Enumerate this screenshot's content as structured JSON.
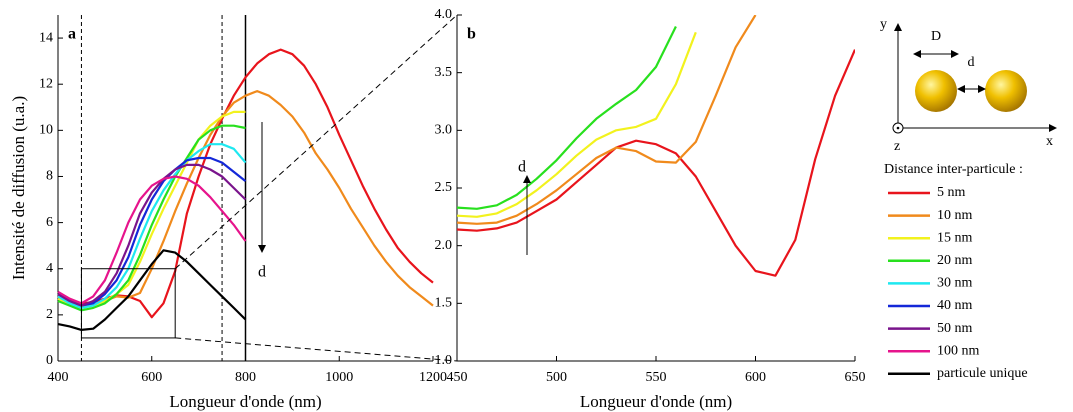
{
  "chart_data": [
    {
      "type": "line",
      "panel_label": "a",
      "ylabel": "Intensité de diffusion (u.a.)",
      "xlabel": "Longueur d'onde (nm)",
      "xlim": [
        400,
        1200
      ],
      "ylim": [
        0,
        15
      ],
      "xticks": [
        400,
        600,
        800,
        1000,
        1200
      ],
      "yticks": [
        0,
        2,
        4,
        6,
        8,
        10,
        12,
        14
      ],
      "dashed_vlines": [
        450,
        750
      ],
      "solid_vline": 800,
      "zoom_box": {
        "xlim": [
          450,
          650
        ],
        "ylim": [
          1,
          4
        ]
      },
      "annotation": "d",
      "legend_title": "Distance inter-particule :",
      "x": [
        400,
        425,
        450,
        475,
        500,
        525,
        550,
        575,
        600,
        625,
        650,
        675,
        700,
        725,
        750,
        775,
        800,
        825,
        850,
        875,
        900,
        925,
        950,
        975,
        1000,
        1025,
        1050,
        1075,
        1100,
        1125,
        1150,
        1175,
        1200
      ],
      "series": [
        {
          "name": "5 nm",
          "color": "#e8141c",
          "values": [
            2.8,
            2.6,
            2.5,
            2.55,
            2.7,
            2.85,
            2.8,
            2.6,
            1.9,
            2.5,
            3.9,
            6.4,
            8.0,
            9.4,
            10.5,
            11.5,
            12.3,
            12.9,
            13.3,
            13.5,
            13.3,
            12.8,
            12.0,
            11.0,
            9.8,
            8.7,
            7.6,
            6.6,
            5.7,
            4.9,
            4.3,
            3.8,
            3.4
          ]
        },
        {
          "name": "10 nm",
          "color": "#f08a1c",
          "values": [
            2.8,
            2.6,
            2.4,
            2.45,
            2.6,
            2.8,
            2.75,
            2.95,
            4.0,
            5.2,
            6.5,
            7.7,
            8.8,
            9.8,
            10.6,
            11.2,
            11.5,
            11.7,
            11.5,
            11.1,
            10.6,
            9.9,
            9.0,
            8.3,
            7.5,
            6.6,
            5.8,
            5.0,
            4.3,
            3.7,
            3.2,
            2.8,
            2.4
          ]
        },
        {
          "name": "15 nm",
          "color": "#f2f21e",
          "values": [
            2.7,
            2.5,
            2.3,
            2.4,
            2.6,
            2.9,
            3.3,
            4.3,
            5.5,
            6.6,
            7.6,
            8.6,
            9.6,
            10.2,
            10.6,
            10.8,
            10.8,
            null,
            null,
            null,
            null,
            null,
            null,
            null,
            null,
            null,
            null,
            null,
            null,
            null,
            null,
            null,
            null
          ]
        },
        {
          "name": "20 nm",
          "color": "#28e01e",
          "values": [
            2.6,
            2.4,
            2.2,
            2.3,
            2.5,
            2.9,
            3.5,
            4.6,
            5.9,
            7.0,
            8.0,
            8.8,
            9.6,
            10.0,
            10.2,
            10.2,
            10.1,
            null,
            null,
            null,
            null,
            null,
            null,
            null,
            null,
            null,
            null,
            null,
            null,
            null,
            null,
            null,
            null
          ]
        },
        {
          "name": "30 nm",
          "color": "#1ee8f0",
          "values": [
            2.8,
            2.5,
            2.3,
            2.4,
            2.7,
            3.2,
            4.0,
            5.3,
            6.5,
            7.4,
            8.1,
            8.7,
            9.1,
            9.4,
            9.4,
            9.2,
            8.6,
            null,
            null,
            null,
            null,
            null,
            null,
            null,
            null,
            null,
            null,
            null,
            null,
            null,
            null,
            null,
            null
          ]
        },
        {
          "name": "40 nm",
          "color": "#1428d8",
          "values": [
            2.9,
            2.6,
            2.4,
            2.5,
            2.9,
            3.5,
            4.5,
            5.9,
            7.0,
            7.8,
            8.3,
            8.7,
            8.8,
            8.8,
            8.6,
            8.2,
            7.8,
            null,
            null,
            null,
            null,
            null,
            null,
            null,
            null,
            null,
            null,
            null,
            null,
            null,
            null,
            null,
            null
          ]
        },
        {
          "name": "50 nm",
          "color": "#7a148c",
          "values": [
            2.9,
            2.6,
            2.4,
            2.6,
            3.0,
            3.8,
            5.0,
            6.4,
            7.3,
            7.9,
            8.3,
            8.5,
            8.5,
            8.3,
            8.0,
            7.5,
            7.0,
            null,
            null,
            null,
            null,
            null,
            null,
            null,
            null,
            null,
            null,
            null,
            null,
            null,
            null,
            null,
            null
          ]
        },
        {
          "name": "100 nm",
          "color": "#e6148c",
          "values": [
            3.0,
            2.7,
            2.5,
            2.8,
            3.5,
            4.7,
            6.0,
            7.0,
            7.6,
            7.9,
            8.0,
            7.9,
            7.6,
            7.1,
            6.5,
            5.9,
            5.2,
            null,
            null,
            null,
            null,
            null,
            null,
            null,
            null,
            null,
            null,
            null,
            null,
            null,
            null,
            null,
            null
          ]
        },
        {
          "name": "particule unique",
          "color": "#000000",
          "values": [
            1.6,
            1.5,
            1.35,
            1.4,
            1.8,
            2.3,
            2.8,
            3.5,
            4.2,
            4.8,
            4.7,
            4.3,
            3.8,
            3.3,
            2.8,
            2.3,
            1.8,
            null,
            null,
            null,
            null,
            null,
            null,
            null,
            null,
            null,
            null,
            null,
            null,
            null,
            null,
            null,
            null
          ]
        }
      ]
    },
    {
      "type": "line",
      "panel_label": "b",
      "xlabel": "Longueur d'onde (nm)",
      "annotation": "d",
      "xlim": [
        450,
        650
      ],
      "ylim": [
        1,
        4
      ],
      "xticks": [
        450,
        500,
        550,
        600,
        650
      ],
      "yticks": [
        {
          "value": 1,
          "label": "1.0"
        },
        1.5,
        {
          "value": 2,
          "label": "2.0"
        },
        2.5,
        {
          "value": 3,
          "label": "3.0"
        },
        3.5,
        {
          "value": 4,
          "label": "4.0"
        }
      ],
      "x": [
        450,
        460,
        470,
        480,
        490,
        500,
        510,
        520,
        530,
        540,
        550,
        560,
        570,
        580,
        590,
        600,
        610,
        620,
        630,
        640,
        650
      ],
      "series": [
        {
          "color": "#e8141c",
          "values": [
            2.14,
            2.13,
            2.15,
            2.2,
            2.3,
            2.4,
            2.55,
            2.7,
            2.85,
            2.91,
            2.88,
            2.8,
            2.6,
            2.3,
            2.0,
            1.78,
            1.74,
            2.05,
            2.75,
            3.3,
            3.7
          ]
        },
        {
          "color": "#f08a1c",
          "values": [
            2.2,
            2.19,
            2.2,
            2.26,
            2.36,
            2.48,
            2.62,
            2.76,
            2.85,
            2.82,
            2.73,
            2.72,
            2.9,
            3.3,
            3.72,
            4.0,
            null,
            null,
            null,
            null,
            null
          ]
        },
        {
          "color": "#f2f21e",
          "values": [
            2.26,
            2.25,
            2.28,
            2.36,
            2.48,
            2.62,
            2.78,
            2.92,
            3.0,
            3.03,
            3.1,
            3.4,
            3.85,
            null,
            null,
            null,
            null,
            null,
            null,
            null,
            null
          ]
        },
        {
          "color": "#28e01e",
          "values": [
            2.33,
            2.32,
            2.35,
            2.44,
            2.58,
            2.74,
            2.93,
            3.1,
            3.23,
            3.35,
            3.55,
            3.9,
            null,
            null,
            null,
            null,
            null,
            null,
            null,
            null,
            null
          ]
        }
      ]
    }
  ],
  "schematic": {
    "y_axis": "y",
    "x_axis": "x",
    "z_axis": "z",
    "diameter": "D",
    "gap": "d"
  }
}
